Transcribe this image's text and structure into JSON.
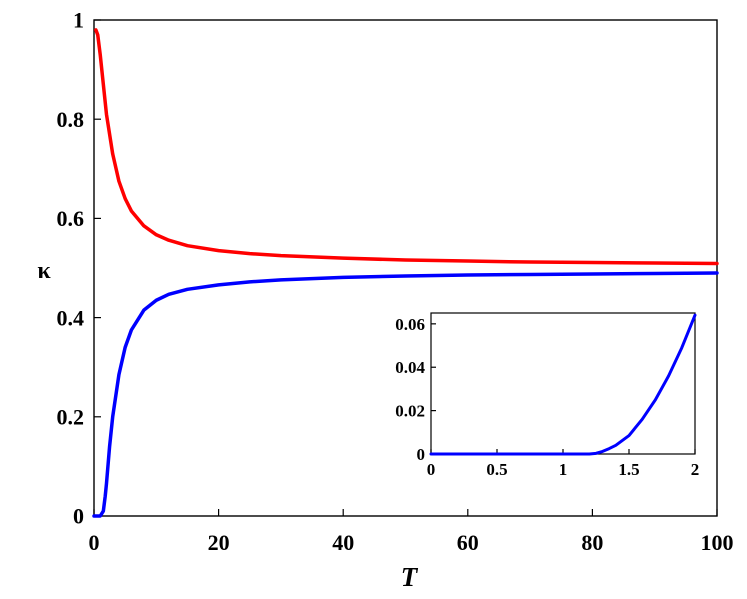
{
  "chart_data": [
    {
      "type": "line",
      "xlabel": "T",
      "ylabel": "κ",
      "xlim": [
        0,
        100
      ],
      "ylim": [
        0,
        1
      ],
      "xticks": [
        "0",
        "20",
        "40",
        "60",
        "80",
        "100"
      ],
      "yticks": [
        "0",
        "0.2",
        "0.4",
        "0.6",
        "0.8",
        "1"
      ],
      "grid": false,
      "legend": "none",
      "series": [
        {
          "color": "#ff0000",
          "x": [
            0.3,
            0.6,
            1,
            1.5,
            2,
            3,
            4,
            5,
            6,
            8,
            10,
            12,
            15,
            20,
            25,
            30,
            40,
            50,
            60,
            70,
            80,
            90,
            100
          ],
          "y": [
            0.98,
            0.97,
            0.93,
            0.87,
            0.81,
            0.73,
            0.675,
            0.64,
            0.615,
            0.585,
            0.567,
            0.556,
            0.545,
            0.535,
            0.529,
            0.525,
            0.52,
            0.516,
            0.514,
            0.512,
            0.511,
            0.51,
            0.509
          ]
        },
        {
          "color": "#0000ff",
          "x": [
            0,
            1,
            1.5,
            1.8,
            2,
            2.5,
            3,
            4,
            5,
            6,
            8,
            10,
            12,
            15,
            20,
            25,
            30,
            40,
            50,
            60,
            70,
            80,
            90,
            100
          ],
          "y": [
            0,
            0,
            0.01,
            0.04,
            0.065,
            0.14,
            0.2,
            0.285,
            0.34,
            0.375,
            0.415,
            0.435,
            0.447,
            0.457,
            0.466,
            0.472,
            0.476,
            0.481,
            0.484,
            0.486,
            0.487,
            0.488,
            0.489,
            0.49
          ]
        }
      ]
    },
    {
      "type": "line",
      "xlim": [
        0,
        2
      ],
      "ylim": [
        0,
        0.065
      ],
      "xticks": [
        "0",
        "0.5",
        "1",
        "1.5",
        "2"
      ],
      "yticks": [
        "0",
        "0.02",
        "0.04",
        "0.06"
      ],
      "grid": false,
      "legend": "none",
      "series": [
        {
          "color": "#0000ff",
          "x": [
            0,
            0.5,
            1,
            1.1,
            1.2,
            1.25,
            1.3,
            1.35,
            1.4,
            1.5,
            1.6,
            1.7,
            1.8,
            1.9,
            2
          ],
          "y": [
            0,
            0,
            0,
            0,
            0,
            0.0003,
            0.0012,
            0.0025,
            0.004,
            0.0085,
            0.016,
            0.025,
            0.036,
            0.049,
            0.064
          ]
        }
      ]
    }
  ]
}
